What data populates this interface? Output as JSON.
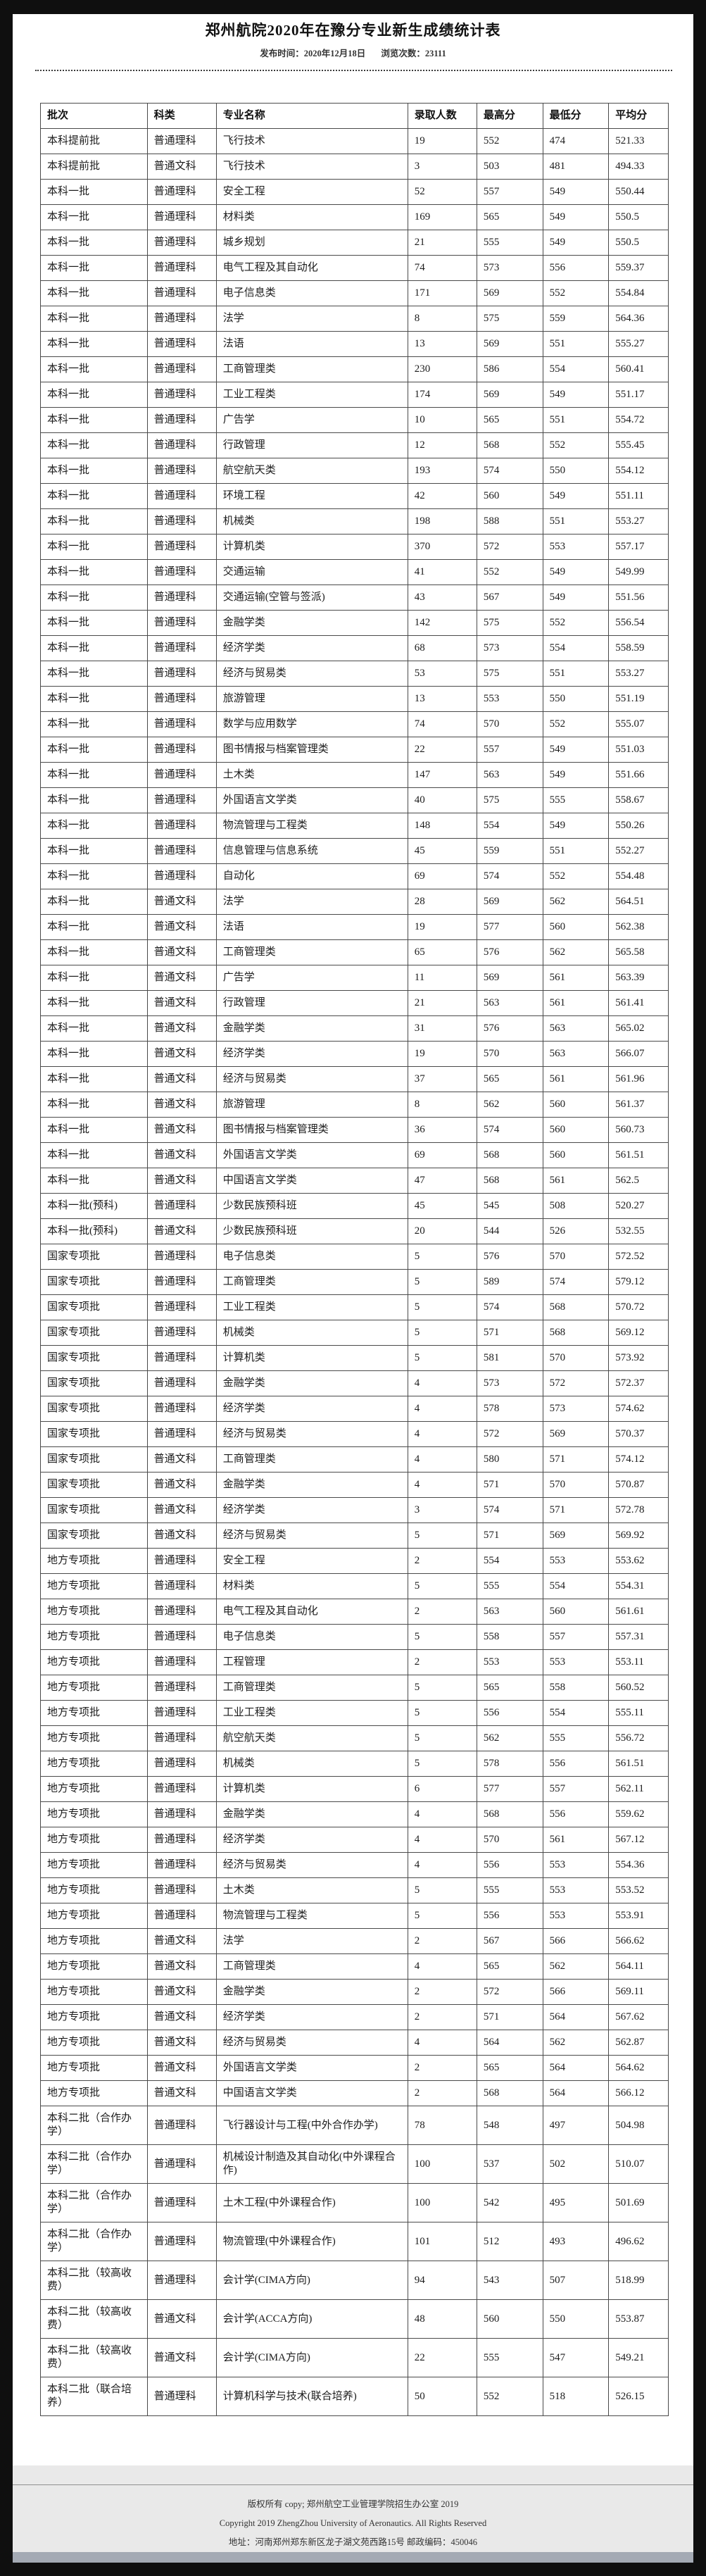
{
  "header": {
    "title": "郑州航院2020年在豫分专业新生成绩统计表",
    "publish_label": "发布时间：",
    "publish_date": "2020年12月18日",
    "views_label": "浏览次数：",
    "views_count": "23111"
  },
  "colors": {
    "footer_background": "#e9e9e9",
    "bottom_band": "#a4aab4",
    "page_background": "#ffffff",
    "canvas_background": "#0f0f0f"
  },
  "table": {
    "columns": [
      "批次",
      "科类",
      "专业名称",
      "录取人数",
      "最高分",
      "最低分",
      "平均分"
    ],
    "column_keys": [
      "batch",
      "category",
      "major",
      "count",
      "max-score",
      "min-score",
      "avg-score"
    ],
    "rows": [
      [
        "本科提前批",
        "普通理科",
        "飞行技术",
        "19",
        "552",
        "474",
        "521.33"
      ],
      [
        "本科提前批",
        "普通文科",
        "飞行技术",
        "3",
        "503",
        "481",
        "494.33"
      ],
      [
        "本科一批",
        "普通理科",
        "安全工程",
        "52",
        "557",
        "549",
        "550.44"
      ],
      [
        "本科一批",
        "普通理科",
        "材料类",
        "169",
        "565",
        "549",
        "550.5"
      ],
      [
        "本科一批",
        "普通理科",
        "城乡规划",
        "21",
        "555",
        "549",
        "550.5"
      ],
      [
        "本科一批",
        "普通理科",
        "电气工程及其自动化",
        "74",
        "573",
        "556",
        "559.37"
      ],
      [
        "本科一批",
        "普通理科",
        "电子信息类",
        "171",
        "569",
        "552",
        "554.84"
      ],
      [
        "本科一批",
        "普通理科",
        "法学",
        "8",
        "575",
        "559",
        "564.36"
      ],
      [
        "本科一批",
        "普通理科",
        "法语",
        "13",
        "569",
        "551",
        "555.27"
      ],
      [
        "本科一批",
        "普通理科",
        "工商管理类",
        "230",
        "586",
        "554",
        "560.41"
      ],
      [
        "本科一批",
        "普通理科",
        "工业工程类",
        "174",
        "569",
        "549",
        "551.17"
      ],
      [
        "本科一批",
        "普通理科",
        "广告学",
        "10",
        "565",
        "551",
        "554.72"
      ],
      [
        "本科一批",
        "普通理科",
        "行政管理",
        "12",
        "568",
        "552",
        "555.45"
      ],
      [
        "本科一批",
        "普通理科",
        "航空航天类",
        "193",
        "574",
        "550",
        "554.12"
      ],
      [
        "本科一批",
        "普通理科",
        "环境工程",
        "42",
        "560",
        "549",
        "551.11"
      ],
      [
        "本科一批",
        "普通理科",
        "机械类",
        "198",
        "588",
        "551",
        "553.27"
      ],
      [
        "本科一批",
        "普通理科",
        "计算机类",
        "370",
        "572",
        "553",
        "557.17"
      ],
      [
        "本科一批",
        "普通理科",
        "交通运输",
        "41",
        "552",
        "549",
        "549.99"
      ],
      [
        "本科一批",
        "普通理科",
        "交通运输(空管与签派)",
        "43",
        "567",
        "549",
        "551.56"
      ],
      [
        "本科一批",
        "普通理科",
        "金融学类",
        "142",
        "575",
        "552",
        "556.54"
      ],
      [
        "本科一批",
        "普通理科",
        "经济学类",
        "68",
        "573",
        "554",
        "558.59"
      ],
      [
        "本科一批",
        "普通理科",
        "经济与贸易类",
        "53",
        "575",
        "551",
        "553.27"
      ],
      [
        "本科一批",
        "普通理科",
        "旅游管理",
        "13",
        "553",
        "550",
        "551.19"
      ],
      [
        "本科一批",
        "普通理科",
        "数学与应用数学",
        "74",
        "570",
        "552",
        "555.07"
      ],
      [
        "本科一批",
        "普通理科",
        "图书情报与档案管理类",
        "22",
        "557",
        "549",
        "551.03"
      ],
      [
        "本科一批",
        "普通理科",
        "土木类",
        "147",
        "563",
        "549",
        "551.66"
      ],
      [
        "本科一批",
        "普通理科",
        "外国语言文学类",
        "40",
        "575",
        "555",
        "558.67"
      ],
      [
        "本科一批",
        "普通理科",
        "物流管理与工程类",
        "148",
        "554",
        "549",
        "550.26"
      ],
      [
        "本科一批",
        "普通理科",
        "信息管理与信息系统",
        "45",
        "559",
        "551",
        "552.27"
      ],
      [
        "本科一批",
        "普通理科",
        "自动化",
        "69",
        "574",
        "552",
        "554.48"
      ],
      [
        "本科一批",
        "普通文科",
        "法学",
        "28",
        "569",
        "562",
        "564.51"
      ],
      [
        "本科一批",
        "普通文科",
        "法语",
        "19",
        "577",
        "560",
        "562.38"
      ],
      [
        "本科一批",
        "普通文科",
        "工商管理类",
        "65",
        "576",
        "562",
        "565.58"
      ],
      [
        "本科一批",
        "普通文科",
        "广告学",
        "11",
        "569",
        "561",
        "563.39"
      ],
      [
        "本科一批",
        "普通文科",
        "行政管理",
        "21",
        "563",
        "561",
        "561.41"
      ],
      [
        "本科一批",
        "普通文科",
        "金融学类",
        "31",
        "576",
        "563",
        "565.02"
      ],
      [
        "本科一批",
        "普通文科",
        "经济学类",
        "19",
        "570",
        "563",
        "566.07"
      ],
      [
        "本科一批",
        "普通文科",
        "经济与贸易类",
        "37",
        "565",
        "561",
        "561.96"
      ],
      [
        "本科一批",
        "普通文科",
        "旅游管理",
        "8",
        "562",
        "560",
        "561.37"
      ],
      [
        "本科一批",
        "普通文科",
        "图书情报与档案管理类",
        "36",
        "574",
        "560",
        "560.73"
      ],
      [
        "本科一批",
        "普通文科",
        "外国语言文学类",
        "69",
        "568",
        "560",
        "561.51"
      ],
      [
        "本科一批",
        "普通文科",
        "中国语言文学类",
        "47",
        "568",
        "561",
        "562.5"
      ],
      [
        "本科一批(预科)",
        "普通理科",
        "少数民族预科班",
        "45",
        "545",
        "508",
        "520.27"
      ],
      [
        "本科一批(预科)",
        "普通文科",
        "少数民族预科班",
        "20",
        "544",
        "526",
        "532.55"
      ],
      [
        "国家专项批",
        "普通理科",
        "电子信息类",
        "5",
        "576",
        "570",
        "572.52"
      ],
      [
        "国家专项批",
        "普通理科",
        "工商管理类",
        "5",
        "589",
        "574",
        "579.12"
      ],
      [
        "国家专项批",
        "普通理科",
        "工业工程类",
        "5",
        "574",
        "568",
        "570.72"
      ],
      [
        "国家专项批",
        "普通理科",
        "机械类",
        "5",
        "571",
        "568",
        "569.12"
      ],
      [
        "国家专项批",
        "普通理科",
        "计算机类",
        "5",
        "581",
        "570",
        "573.92"
      ],
      [
        "国家专项批",
        "普通理科",
        "金融学类",
        "4",
        "573",
        "572",
        "572.37"
      ],
      [
        "国家专项批",
        "普通理科",
        "经济学类",
        "4",
        "578",
        "573",
        "574.62"
      ],
      [
        "国家专项批",
        "普通理科",
        "经济与贸易类",
        "4",
        "572",
        "569",
        "570.37"
      ],
      [
        "国家专项批",
        "普通文科",
        "工商管理类",
        "4",
        "580",
        "571",
        "574.12"
      ],
      [
        "国家专项批",
        "普通文科",
        "金融学类",
        "4",
        "571",
        "570",
        "570.87"
      ],
      [
        "国家专项批",
        "普通文科",
        "经济学类",
        "3",
        "574",
        "571",
        "572.78"
      ],
      [
        "国家专项批",
        "普通文科",
        "经济与贸易类",
        "5",
        "571",
        "569",
        "569.92"
      ],
      [
        "地方专项批",
        "普通理科",
        "安全工程",
        "2",
        "554",
        "553",
        "553.62"
      ],
      [
        "地方专项批",
        "普通理科",
        "材料类",
        "5",
        "555",
        "554",
        "554.31"
      ],
      [
        "地方专项批",
        "普通理科",
        "电气工程及其自动化",
        "2",
        "563",
        "560",
        "561.61"
      ],
      [
        "地方专项批",
        "普通理科",
        "电子信息类",
        "5",
        "558",
        "557",
        "557.31"
      ],
      [
        "地方专项批",
        "普通理科",
        "工程管理",
        "2",
        "553",
        "553",
        "553.11"
      ],
      [
        "地方专项批",
        "普通理科",
        "工商管理类",
        "5",
        "565",
        "558",
        "560.52"
      ],
      [
        "地方专项批",
        "普通理科",
        "工业工程类",
        "5",
        "556",
        "554",
        "555.11"
      ],
      [
        "地方专项批",
        "普通理科",
        "航空航天类",
        "5",
        "562",
        "555",
        "556.72"
      ],
      [
        "地方专项批",
        "普通理科",
        "机械类",
        "5",
        "578",
        "556",
        "561.51"
      ],
      [
        "地方专项批",
        "普通理科",
        "计算机类",
        "6",
        "577",
        "557",
        "562.11"
      ],
      [
        "地方专项批",
        "普通理科",
        "金融学类",
        "4",
        "568",
        "556",
        "559.62"
      ],
      [
        "地方专项批",
        "普通理科",
        "经济学类",
        "4",
        "570",
        "561",
        "567.12"
      ],
      [
        "地方专项批",
        "普通理科",
        "经济与贸易类",
        "4",
        "556",
        "553",
        "554.36"
      ],
      [
        "地方专项批",
        "普通理科",
        "土木类",
        "5",
        "555",
        "553",
        "553.52"
      ],
      [
        "地方专项批",
        "普通理科",
        "物流管理与工程类",
        "5",
        "556",
        "553",
        "553.91"
      ],
      [
        "地方专项批",
        "普通文科",
        "法学",
        "2",
        "567",
        "566",
        "566.62"
      ],
      [
        "地方专项批",
        "普通文科",
        "工商管理类",
        "4",
        "565",
        "562",
        "564.11"
      ],
      [
        "地方专项批",
        "普通文科",
        "金融学类",
        "2",
        "572",
        "566",
        "569.11"
      ],
      [
        "地方专项批",
        "普通文科",
        "经济学类",
        "2",
        "571",
        "564",
        "567.62"
      ],
      [
        "地方专项批",
        "普通文科",
        "经济与贸易类",
        "4",
        "564",
        "562",
        "562.87"
      ],
      [
        "地方专项批",
        "普通文科",
        "外国语言文学类",
        "2",
        "565",
        "564",
        "564.62"
      ],
      [
        "地方专项批",
        "普通文科",
        "中国语言文学类",
        "2",
        "568",
        "564",
        "566.12"
      ],
      [
        "本科二批（合作办学）",
        "普通理科",
        "飞行器设计与工程(中外合作办学)",
        "78",
        "548",
        "497",
        "504.98"
      ],
      [
        "本科二批（合作办学）",
        "普通理科",
        "机械设计制造及其自动化(中外课程合作)",
        "100",
        "537",
        "502",
        "510.07"
      ],
      [
        "本科二批（合作办学）",
        "普通理科",
        "土木工程(中外课程合作)",
        "100",
        "542",
        "495",
        "501.69"
      ],
      [
        "本科二批（合作办学）",
        "普通理科",
        "物流管理(中外课程合作)",
        "101",
        "512",
        "493",
        "496.62"
      ],
      [
        "本科二批（较高收费）",
        "普通理科",
        "会计学(CIMA方向)",
        "94",
        "543",
        "507",
        "518.99"
      ],
      [
        "本科二批（较高收费）",
        "普通文科",
        "会计学(ACCA方向)",
        "48",
        "560",
        "550",
        "553.87"
      ],
      [
        "本科二批（较高收费）",
        "普通文科",
        "会计学(CIMA方向)",
        "22",
        "555",
        "547",
        "549.21"
      ],
      [
        "本科二批（联合培养）",
        "普通理科",
        "计算机科学与技术(联合培养)",
        "50",
        "552",
        "518",
        "526.15"
      ]
    ]
  },
  "footer": {
    "line1": "版权所有 copy; 郑州航空工业管理学院招生办公室 2019",
    "line2": "Copyright 2019 ZhengZhou University of Aeronautics. All Rights Reserved",
    "line3": "地址：河南郑州郑东新区龙子湖文苑西路15号 邮政编码：450046"
  }
}
